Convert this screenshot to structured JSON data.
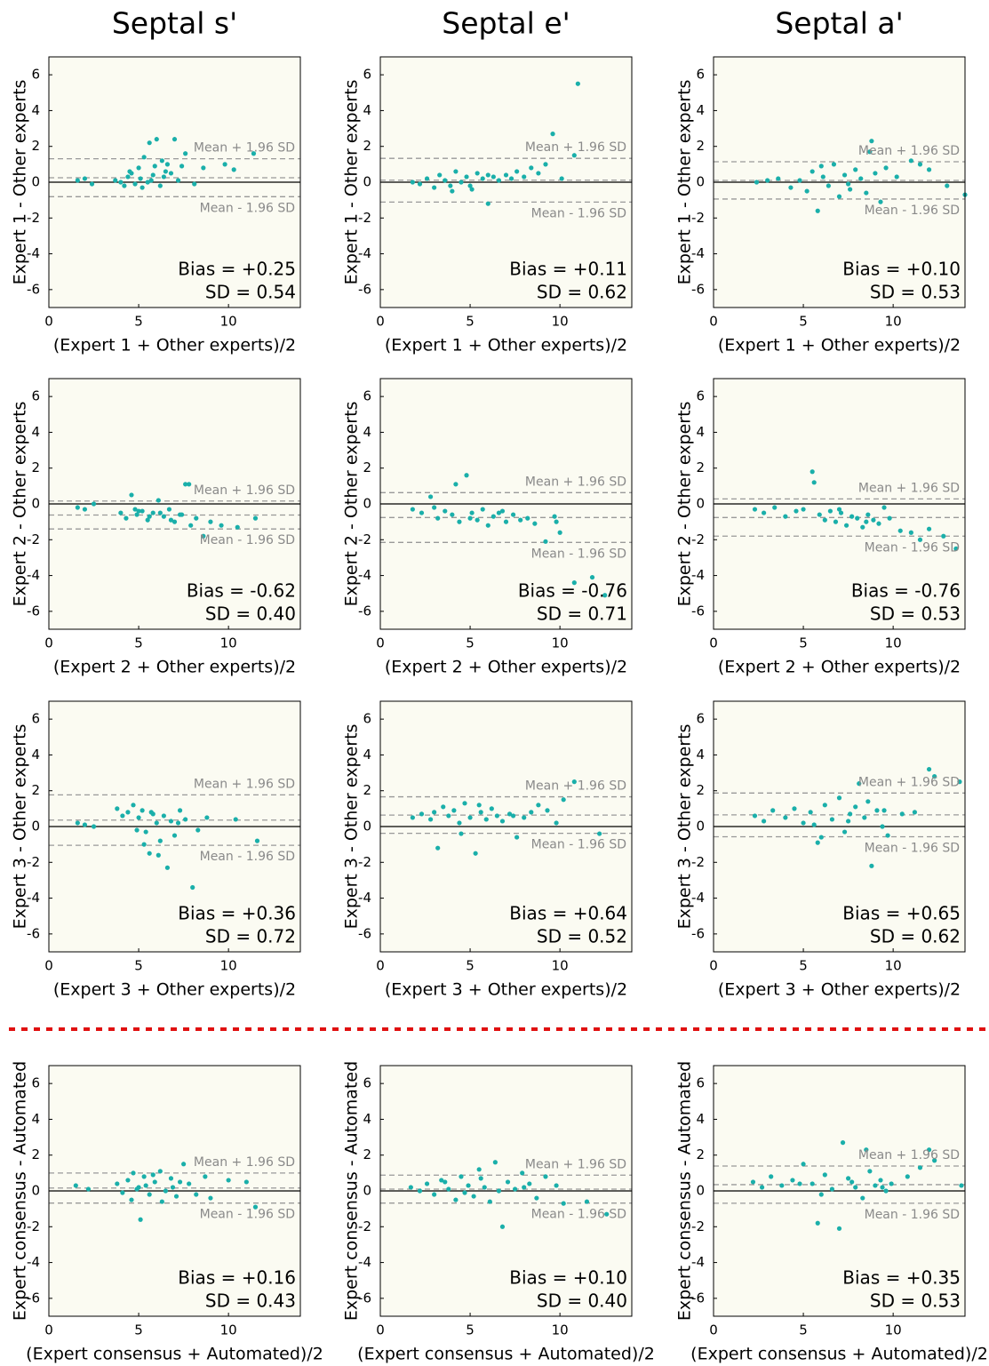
{
  "column_titles": [
    "Septal s'",
    "Septal e'",
    "Septal a'"
  ],
  "chart_data": [
    {
      "type": "scatter",
      "ylabel": "Expert 1 - Other experts",
      "xlabel": "(Expert 1 + Other experts)/2",
      "xlim": [
        0,
        14
      ],
      "ylim": [
        -7,
        7
      ],
      "xticks": [
        0,
        5,
        10
      ],
      "yticks": [
        -6,
        -4,
        -2,
        0,
        2,
        4,
        6
      ],
      "color": "#1aafaa",
      "x": [
        1.6,
        2.0,
        2.4,
        3.7,
        4.0,
        4.2,
        4.4,
        4.6,
        4.8,
        5.0,
        5.1,
        5.3,
        5.5,
        5.6,
        5.8,
        5.9,
        6.0,
        6.2,
        6.3,
        6.5,
        6.6,
        6.8,
        7.0,
        7.2,
        7.4,
        7.6,
        8.1,
        8.6,
        9.8,
        10.3,
        11.4,
        4.5,
        5.2,
        6.4,
        5.7
      ],
      "values": [
        0.1,
        0.2,
        -0.1,
        0.1,
        0.0,
        -0.2,
        0.3,
        0.5,
        -0.1,
        0.8,
        0.2,
        1.4,
        0.0,
        2.2,
        0.4,
        0.9,
        2.4,
        -0.2,
        1.2,
        0.6,
        1.0,
        0.5,
        2.4,
        0.1,
        0.9,
        1.6,
        -0.1,
        0.8,
        1.0,
        0.7,
        1.6,
        0.6,
        -0.3,
        0.3,
        0.1
      ],
      "bias_line": 0.25,
      "limit_lines": [
        1.31,
        -0.81
      ],
      "limit_labels": [
        "Mean + 1.96 SD",
        "Mean - 1.96 SD"
      ],
      "bias_label": "Bias = +0.25",
      "sd_label": "SD = 0.54"
    },
    {
      "type": "scatter",
      "ylabel": "Expert 1 - Other experts",
      "xlabel": "(Expert 1 + Other experts)/2",
      "xlim": [
        0,
        14
      ],
      "ylim": [
        -7,
        7
      ],
      "xticks": [
        0,
        5,
        10
      ],
      "yticks": [
        -6,
        -4,
        -2,
        0,
        2,
        4,
        6
      ],
      "color": "#1aafaa",
      "x": [
        1.8,
        2.2,
        2.6,
        3.0,
        3.3,
        3.6,
        3.9,
        4.2,
        4.5,
        4.8,
        5.1,
        5.4,
        5.7,
        6.0,
        6.3,
        6.6,
        7.0,
        7.3,
        7.6,
        8.0,
        8.4,
        8.8,
        9.2,
        9.6,
        10.1,
        10.8,
        11.0,
        4.0,
        5.0,
        6.0
      ],
      "values": [
        0.0,
        -0.1,
        0.2,
        -0.3,
        0.4,
        0.1,
        -0.2,
        0.6,
        0.0,
        0.3,
        -0.4,
        0.5,
        0.2,
        -1.2,
        0.3,
        0.1,
        0.4,
        0.2,
        0.6,
        0.3,
        0.8,
        0.5,
        1.0,
        2.7,
        0.2,
        1.5,
        5.5,
        -0.5,
        -0.2,
        0.4
      ],
      "bias_line": 0.11,
      "limit_lines": [
        1.33,
        -1.11
      ],
      "limit_labels": [
        "Mean + 1.96 SD",
        "Mean - 1.96 SD"
      ],
      "bias_label": "Bias = +0.11",
      "sd_label": "SD = 0.62"
    },
    {
      "type": "scatter",
      "ylabel": "Expert 1 - Other experts",
      "xlabel": "(Expert 1 + Other experts)/2",
      "xlim": [
        0,
        14
      ],
      "ylim": [
        -7,
        7
      ],
      "xticks": [
        0,
        5,
        10
      ],
      "yticks": [
        -6,
        -4,
        -2,
        0,
        2,
        4,
        6
      ],
      "color": "#1aafaa",
      "x": [
        2.4,
        3.0,
        3.6,
        4.3,
        4.8,
        5.2,
        5.5,
        5.8,
        6.1,
        6.4,
        6.7,
        7.0,
        7.3,
        7.6,
        7.9,
        8.2,
        8.5,
        8.8,
        9.0,
        9.3,
        9.6,
        10.2,
        11.0,
        11.5,
        12.0,
        13.0,
        14.0,
        6.0,
        7.5,
        8.7
      ],
      "values": [
        0.0,
        0.1,
        0.2,
        -0.3,
        0.1,
        -0.5,
        0.6,
        -1.6,
        0.3,
        -0.2,
        1.0,
        -0.8,
        0.4,
        -0.4,
        0.7,
        0.2,
        -0.6,
        2.3,
        0.5,
        -1.1,
        0.8,
        0.3,
        1.2,
        1.0,
        0.7,
        -0.2,
        -0.7,
        0.9,
        -0.1,
        1.7
      ],
      "bias_line": 0.1,
      "limit_lines": [
        1.14,
        -0.94
      ],
      "limit_labels": [
        "Mean + 1.96 SD",
        "Mean - 1.96 SD"
      ],
      "bias_label": "Bias = +0.10",
      "sd_label": "SD = 0.53"
    },
    {
      "type": "scatter",
      "ylabel": "Expert 2 - Other experts",
      "xlabel": "(Expert 2 + Other experts)/2",
      "xlim": [
        0,
        14
      ],
      "ylim": [
        -7,
        7
      ],
      "xticks": [
        0,
        5,
        10
      ],
      "yticks": [
        -6,
        -4,
        -2,
        0,
        2,
        4,
        6
      ],
      "color": "#1aafaa",
      "x": [
        1.6,
        2.0,
        2.5,
        4.0,
        4.3,
        4.6,
        4.9,
        5.2,
        5.5,
        5.8,
        6.1,
        6.4,
        6.7,
        7.0,
        7.3,
        7.6,
        7.9,
        8.2,
        8.6,
        9.0,
        9.6,
        10.5,
        11.5,
        4.8,
        5.6,
        6.2,
        7.8,
        5.0,
        6.8,
        7.4
      ],
      "values": [
        -0.2,
        -0.3,
        0.0,
        -0.5,
        -0.8,
        0.5,
        -0.6,
        -0.4,
        -0.9,
        -0.5,
        0.2,
        -0.7,
        -0.3,
        -1.0,
        -0.6,
        1.1,
        -1.2,
        -0.8,
        -1.8,
        -1.0,
        -1.2,
        -1.3,
        -0.8,
        -0.3,
        -0.7,
        -0.5,
        1.1,
        -0.4,
        -0.9,
        -0.6
      ],
      "bias_line": -0.62,
      "limit_lines": [
        0.16,
        -1.4
      ],
      "limit_labels": [
        "Mean + 1.96 SD",
        "Mean - 1.96 SD"
      ],
      "bias_label": "Bias = -0.62",
      "sd_label": "SD = 0.40"
    },
    {
      "type": "scatter",
      "ylabel": "Expert 2 - Other experts",
      "xlabel": "(Expert 2 + Other experts)/2",
      "xlim": [
        0,
        14
      ],
      "ylim": [
        -7,
        7
      ],
      "xticks": [
        0,
        5,
        10
      ],
      "yticks": [
        -6,
        -4,
        -2,
        0,
        2,
        4,
        6
      ],
      "color": "#1aafaa",
      "x": [
        1.8,
        2.3,
        2.8,
        3.2,
        3.6,
        4.0,
        4.2,
        4.4,
        4.8,
        5.1,
        5.4,
        5.7,
        6.0,
        6.3,
        6.6,
        7.0,
        7.4,
        7.8,
        8.2,
        8.6,
        9.2,
        9.7,
        10.0,
        10.8,
        11.8,
        12.5,
        3.0,
        5.0,
        6.8,
        9.8
      ],
      "values": [
        -0.3,
        -0.5,
        0.4,
        -0.8,
        -0.4,
        -0.6,
        1.1,
        -1.0,
        1.6,
        -0.5,
        -0.9,
        -0.3,
        -1.2,
        -0.7,
        -0.5,
        -1.0,
        -0.6,
        -0.9,
        -0.8,
        -1.1,
        -2.1,
        -0.7,
        -1.6,
        -4.4,
        -4.1,
        -5.1,
        -0.2,
        -0.8,
        -0.4,
        -1.0
      ],
      "bias_line": -0.76,
      "limit_lines": [
        0.63,
        -2.15
      ],
      "limit_labels": [
        "Mean + 1.96 SD",
        "Mean - 1.96 SD"
      ],
      "bias_label": "Bias = -0.76",
      "sd_label": "SD = 0.71"
    },
    {
      "type": "scatter",
      "ylabel": "Expert 2 - Other experts",
      "xlabel": "(Expert 2 + Other experts)/2",
      "xlim": [
        0,
        14
      ],
      "ylim": [
        -7,
        7
      ],
      "xticks": [
        0,
        5,
        10
      ],
      "yticks": [
        -6,
        -4,
        -2,
        0,
        2,
        4,
        6
      ],
      "color": "#1aafaa",
      "x": [
        2.3,
        2.8,
        3.4,
        4.0,
        4.6,
        5.0,
        5.5,
        5.6,
        5.9,
        6.2,
        6.5,
        6.8,
        7.1,
        7.4,
        7.7,
        8.0,
        8.3,
        8.6,
        8.9,
        9.2,
        9.5,
        9.8,
        10.4,
        11.0,
        11.5,
        12.0,
        12.8,
        13.5,
        7.0,
        8.5
      ],
      "values": [
        -0.3,
        -0.5,
        -0.2,
        -0.7,
        -0.4,
        -0.3,
        1.8,
        1.2,
        -0.6,
        -0.9,
        -0.4,
        -1.0,
        -0.5,
        -1.2,
        -0.7,
        -0.8,
        -1.3,
        -0.6,
        -0.9,
        -1.1,
        -0.2,
        -0.8,
        -1.5,
        -1.6,
        -2.0,
        -1.4,
        -1.8,
        -2.5,
        -0.3,
        -1.0
      ],
      "bias_line": -0.76,
      "limit_lines": [
        0.28,
        -1.8
      ],
      "limit_labels": [
        "Mean + 1.96 SD",
        "Mean - 1.96 SD"
      ],
      "bias_label": "Bias = -0.76",
      "sd_label": "SD = 0.53"
    },
    {
      "type": "scatter",
      "ylabel": "Expert 3 - Other experts",
      "xlabel": "(Expert 3 + Other experts)/2",
      "xlim": [
        0,
        14
      ],
      "ylim": [
        -7,
        7
      ],
      "xticks": [
        0,
        5,
        10
      ],
      "yticks": [
        -6,
        -4,
        -2,
        0,
        2,
        4,
        6
      ],
      "color": "#1aafaa",
      "x": [
        1.6,
        2.0,
        2.5,
        3.8,
        4.1,
        4.4,
        4.7,
        5.0,
        5.2,
        5.4,
        5.6,
        5.8,
        6.0,
        6.2,
        6.4,
        6.6,
        6.8,
        7.0,
        7.3,
        7.6,
        8.0,
        8.3,
        8.8,
        10.4,
        11.6,
        4.9,
        5.3,
        5.7,
        6.1,
        7.2
      ],
      "values": [
        0.2,
        0.1,
        0.0,
        1.0,
        0.6,
        0.8,
        1.2,
        0.5,
        0.9,
        -0.3,
        -1.5,
        0.7,
        0.2,
        -0.8,
        0.6,
        -2.3,
        0.3,
        -0.5,
        0.9,
        0.4,
        -3.4,
        -0.2,
        0.5,
        0.4,
        -0.8,
        -0.2,
        -1.0,
        0.8,
        -1.6,
        0.2
      ],
      "bias_line": 0.36,
      "limit_lines": [
        1.77,
        -1.05
      ],
      "limit_labels": [
        "Mean + 1.96 SD",
        "Mean - 1.96 SD"
      ],
      "bias_label": "Bias = +0.36",
      "sd_label": "SD = 0.72"
    },
    {
      "type": "scatter",
      "ylabel": "Expert 3 - Other experts",
      "xlabel": "(Expert 3 + Other experts)/2",
      "xlim": [
        0,
        14
      ],
      "ylim": [
        -7,
        7
      ],
      "xticks": [
        0,
        5,
        10
      ],
      "yticks": [
        -6,
        -4,
        -2,
        0,
        2,
        4,
        6
      ],
      "color": "#1aafaa",
      "x": [
        1.8,
        2.3,
        2.8,
        3.2,
        3.5,
        3.8,
        4.1,
        4.4,
        4.7,
        5.0,
        5.3,
        5.6,
        5.9,
        6.2,
        6.5,
        6.8,
        7.2,
        7.6,
        8.0,
        8.4,
        8.8,
        9.3,
        9.8,
        10.2,
        10.8,
        12.2,
        3.0,
        4.5,
        5.5,
        7.4
      ],
      "values": [
        0.5,
        0.7,
        0.4,
        -1.2,
        1.1,
        0.6,
        0.9,
        0.2,
        1.3,
        0.5,
        -1.5,
        0.8,
        0.4,
        1.0,
        0.6,
        0.3,
        0.7,
        -0.6,
        0.5,
        0.8,
        1.2,
        0.9,
        0.2,
        1.5,
        2.5,
        -0.4,
        0.8,
        -0.4,
        1.2,
        0.6
      ],
      "bias_line": 0.64,
      "limit_lines": [
        1.66,
        -0.38
      ],
      "limit_labels": [
        "Mean + 1.96 SD",
        "Mean - 1.96 SD"
      ],
      "bias_label": "Bias = +0.64",
      "sd_label": "SD = 0.52"
    },
    {
      "type": "scatter",
      "ylabel": "Expert 3 - Other experts",
      "xlabel": "(Expert 3 + Other experts)/2",
      "xlim": [
        0,
        14
      ],
      "ylim": [
        -7,
        7
      ],
      "xticks": [
        0,
        5,
        10
      ],
      "yticks": [
        -6,
        -4,
        -2,
        0,
        2,
        4,
        6
      ],
      "color": "#1aafaa",
      "x": [
        2.3,
        2.8,
        3.3,
        4.0,
        4.5,
        5.0,
        5.4,
        5.8,
        6.2,
        6.6,
        7.0,
        7.3,
        7.6,
        7.9,
        8.1,
        8.4,
        8.8,
        9.1,
        9.4,
        9.7,
        10.5,
        11.2,
        12.0,
        12.3,
        13.7,
        6.0,
        7.5,
        8.6,
        9.5,
        5.6
      ],
      "values": [
        0.6,
        0.3,
        0.9,
        0.5,
        1.0,
        0.2,
        0.8,
        -0.9,
        1.2,
        0.4,
        1.6,
        -0.3,
        0.7,
        1.1,
        2.4,
        0.5,
        -2.2,
        0.9,
        0.0,
        -0.5,
        0.7,
        0.8,
        3.2,
        2.8,
        2.5,
        -0.6,
        0.3,
        1.4,
        0.9,
        0.1
      ],
      "bias_line": 0.65,
      "limit_lines": [
        1.87,
        -0.57
      ],
      "limit_labels": [
        "Mean + 1.96 SD",
        "Mean - 1.96 SD"
      ],
      "bias_label": "Bias = +0.65",
      "sd_label": "SD = 0.62"
    },
    {
      "type": "scatter",
      "ylabel": "Expert consensus - Automated",
      "xlabel": "(Expert consensus + Automated)/2",
      "xlim": [
        0,
        14
      ],
      "ylim": [
        -7,
        7
      ],
      "xticks": [
        0,
        5,
        10
      ],
      "yticks": [
        -6,
        -4,
        -2,
        0,
        2,
        4,
        6
      ],
      "color": "#1aafaa",
      "x": [
        1.5,
        2.2,
        3.8,
        4.1,
        4.4,
        4.7,
        5.0,
        5.1,
        5.3,
        5.6,
        5.9,
        6.2,
        6.5,
        6.8,
        7.1,
        7.5,
        7.8,
        8.2,
        8.7,
        9.0,
        10.0,
        11.0,
        11.5,
        4.6,
        5.4,
        5.8,
        6.3,
        6.9,
        7.3,
        4.9
      ],
      "values": [
        0.3,
        0.1,
        0.4,
        -0.1,
        0.6,
        1.0,
        0.2,
        -1.6,
        0.8,
        -0.2,
        0.5,
        1.1,
        0.0,
        0.7,
        -0.3,
        1.5,
        0.4,
        -0.2,
        0.8,
        -0.4,
        0.6,
        0.5,
        -0.9,
        -0.5,
        0.3,
        0.9,
        -0.6,
        0.2,
        0.5,
        0.1
      ],
      "bias_line": 0.16,
      "limit_lines": [
        1.0,
        -0.68
      ],
      "limit_labels": [
        "Mean + 1.96 SD",
        "Mean - 1.96 SD"
      ],
      "bias_label": "Bias = +0.16",
      "sd_label": "SD = 0.43"
    },
    {
      "type": "scatter",
      "ylabel": "Expert consensus - Automated",
      "xlabel": "(Expert consensus + Automated)/2",
      "xlim": [
        0,
        14
      ],
      "ylim": [
        -7,
        7
      ],
      "xticks": [
        0,
        5,
        10
      ],
      "yticks": [
        -6,
        -4,
        -2,
        0,
        2,
        4,
        6
      ],
      "color": "#1aafaa",
      "x": [
        1.7,
        2.2,
        2.6,
        3.0,
        3.4,
        3.8,
        4.2,
        4.5,
        4.9,
        5.2,
        5.5,
        5.8,
        6.1,
        6.4,
        6.8,
        7.1,
        7.5,
        7.9,
        8.3,
        8.7,
        9.2,
        9.8,
        10.2,
        11.5,
        12.6,
        3.6,
        4.7,
        5.6,
        6.6,
        8.0
      ],
      "values": [
        0.2,
        0.0,
        0.4,
        -0.2,
        0.6,
        0.1,
        -0.5,
        0.8,
        0.3,
        -0.3,
        1.2,
        0.2,
        -0.6,
        1.6,
        -2.0,
        0.5,
        0.1,
        1.0,
        0.4,
        -0.4,
        0.8,
        0.3,
        -0.7,
        -0.6,
        -1.3,
        0.5,
        -0.1,
        0.7,
        0.0,
        0.2
      ],
      "bias_line": 0.1,
      "limit_lines": [
        0.88,
        -0.68
      ],
      "limit_labels": [
        "Mean + 1.96 SD",
        "Mean - 1.96 SD"
      ],
      "bias_label": "Bias = +0.10",
      "sd_label": "SD = 0.40"
    },
    {
      "type": "scatter",
      "ylabel": "Expert consensus - Automated",
      "xlabel": "(Expert consensus + Automated)/2",
      "xlim": [
        0,
        14
      ],
      "ylim": [
        -7,
        7
      ],
      "xticks": [
        0,
        5,
        10
      ],
      "yticks": [
        -6,
        -4,
        -2,
        0,
        2,
        4,
        6
      ],
      "color": "#1aafaa",
      "x": [
        2.2,
        2.7,
        3.2,
        3.8,
        4.4,
        5.0,
        5.5,
        5.8,
        6.2,
        6.6,
        7.0,
        7.2,
        7.5,
        7.9,
        8.3,
        8.7,
        9.0,
        9.3,
        9.6,
        9.9,
        10.8,
        11.5,
        12.0,
        12.3,
        13.8,
        6.0,
        7.7,
        8.5,
        9.4,
        4.8
      ],
      "values": [
        0.5,
        0.2,
        0.8,
        0.3,
        0.6,
        1.5,
        0.4,
        -1.8,
        0.9,
        0.1,
        -2.1,
        2.7,
        0.7,
        0.2,
        -0.4,
        1.1,
        0.3,
        0.6,
        0.0,
        0.4,
        0.8,
        1.3,
        2.3,
        1.7,
        0.3,
        -0.2,
        0.5,
        2.3,
        0.2,
        0.4
      ],
      "bias_line": 0.35,
      "limit_lines": [
        1.39,
        -0.69
      ],
      "limit_labels": [
        "Mean + 1.96 SD",
        "Mean - 1.96 SD"
      ],
      "bias_label": "Bias = +0.35",
      "sd_label": "SD = 0.53"
    }
  ]
}
